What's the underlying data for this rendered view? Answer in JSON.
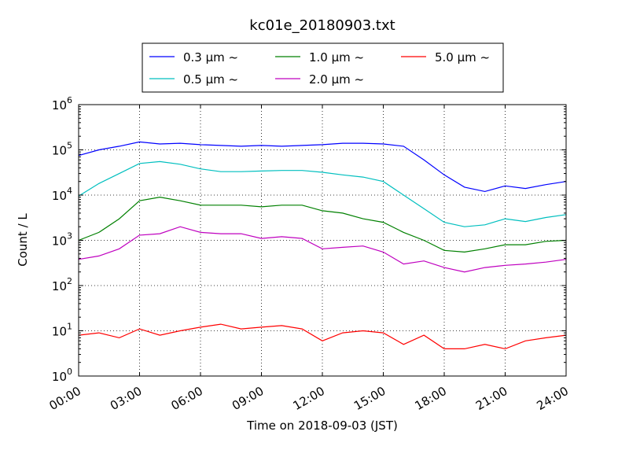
{
  "chart_data": {
    "type": "line",
    "title": "kc01e_20180903.txt",
    "xlabel": "Time on 2018-09-03 (JST)",
    "ylabel": "Count / L",
    "x_tick_labels": [
      "00:00",
      "03:00",
      "06:00",
      "09:00",
      "12:00",
      "15:00",
      "18:00",
      "21:00",
      "24:00"
    ],
    "x_range_hours": [
      0,
      24
    ],
    "y_scale": "log",
    "ylim": [
      1,
      1000000
    ],
    "y_tick_labels": [
      {
        "base": "10",
        "exp": "0"
      },
      {
        "base": "10",
        "exp": "1"
      },
      {
        "base": "10",
        "exp": "2"
      },
      {
        "base": "10",
        "exp": "3"
      },
      {
        "base": "10",
        "exp": "4"
      },
      {
        "base": "10",
        "exp": "5"
      },
      {
        "base": "10",
        "exp": "6"
      }
    ],
    "grid": true,
    "legend_position": "top-center",
    "x_hours": [
      0,
      1,
      2,
      3,
      4,
      5,
      6,
      7,
      8,
      9,
      10,
      11,
      12,
      13,
      14,
      15,
      16,
      17,
      18,
      19,
      20,
      21,
      22,
      23,
      24
    ],
    "series": [
      {
        "name": "0.3 μm ~",
        "color": "#0000ff",
        "values": [
          75000,
          100000,
          120000,
          150000,
          135000,
          140000,
          130000,
          125000,
          120000,
          125000,
          120000,
          125000,
          130000,
          140000,
          140000,
          135000,
          120000,
          60000,
          28000,
          15000,
          12000,
          16000,
          14000,
          17000,
          20000
        ]
      },
      {
        "name": "0.5 μm ~",
        "color": "#00bfbf",
        "values": [
          9500,
          18000,
          30000,
          50000,
          55000,
          48000,
          38000,
          33000,
          33000,
          34000,
          35000,
          35000,
          32000,
          28000,
          25000,
          20000,
          10000,
          5000,
          2500,
          2000,
          2200,
          3000,
          2600,
          3200,
          3700
        ]
      },
      {
        "name": "1.0 μm ~",
        "color": "#008000",
        "values": [
          1000,
          1500,
          3000,
          7500,
          9000,
          7500,
          6000,
          6000,
          6000,
          5500,
          6000,
          6000,
          4500,
          4000,
          3000,
          2500,
          1500,
          1000,
          600,
          550,
          650,
          800,
          800,
          950,
          1000
        ]
      },
      {
        "name": "2.0 μm ~",
        "color": "#bf00bf",
        "values": [
          380,
          450,
          650,
          1300,
          1400,
          2000,
          1500,
          1400,
          1400,
          1100,
          1200,
          1100,
          650,
          700,
          750,
          550,
          300,
          350,
          250,
          200,
          250,
          280,
          300,
          330,
          380
        ]
      },
      {
        "name": "5.0 μm ~",
        "color": "#ff0000",
        "values": [
          8,
          9,
          7,
          11,
          8,
          10,
          12,
          14,
          11,
          12,
          13,
          11,
          6,
          9,
          10,
          9,
          5,
          8,
          4,
          4,
          5,
          4,
          6,
          7,
          8
        ]
      }
    ]
  }
}
